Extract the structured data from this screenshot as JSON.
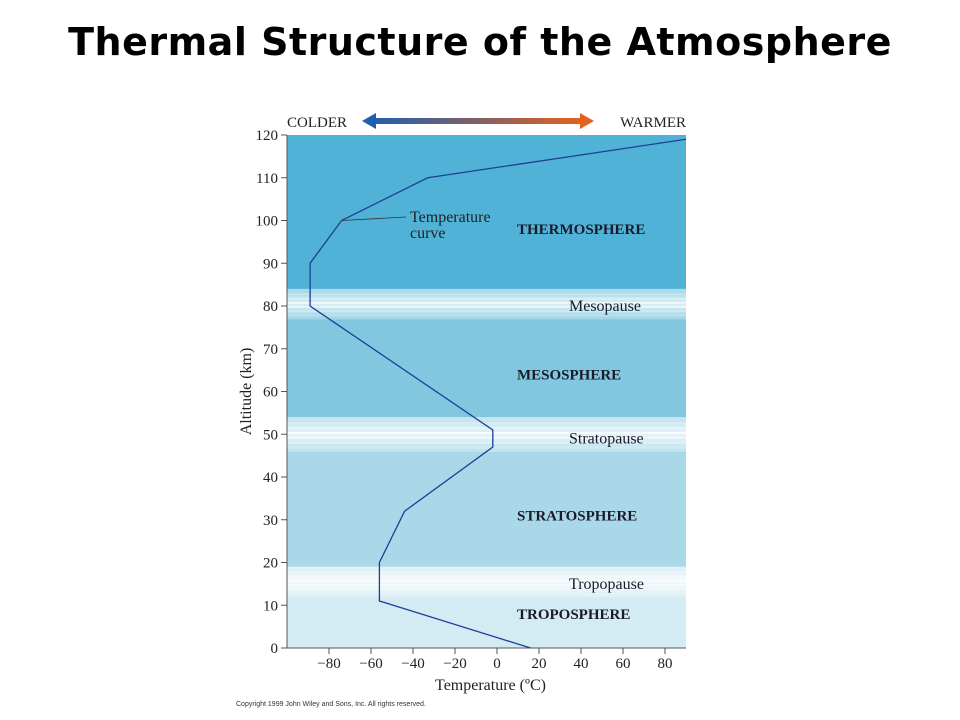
{
  "title": "Thermal Structure of the Atmosphere",
  "copyright": "Copyright 1999 John Wiley and Sons, Inc. All rights reserved.",
  "colors": {
    "thermosphere": "#4fb2d6",
    "mesosphere": "#80c7df",
    "stratosphere": "#a9d9e9",
    "troposphere": "#d3ebf3",
    "pause_band": "#ffffff",
    "curve": "#1f3f96",
    "arrow_cold": "#1f5fb0",
    "arrow_warm": "#e3621e"
  },
  "chart_data": {
    "type": "line",
    "xlabel": "Temperature (ºC)",
    "ylabel": "Altitude (km)",
    "xlim": [
      -100,
      90
    ],
    "ylim": [
      0,
      120
    ],
    "xticks": [
      -80,
      -60,
      -40,
      -20,
      0,
      20,
      40,
      60,
      80
    ],
    "xtick_labels": [
      "−80",
      "−60",
      "−40",
      "−20",
      "0",
      "20",
      "40",
      "60",
      "80"
    ],
    "yticks": [
      0,
      10,
      20,
      30,
      40,
      50,
      60,
      70,
      80,
      90,
      100,
      110,
      120
    ],
    "grid": false,
    "scale_arrow": {
      "left_label": "COLDER",
      "right_label": "WARMER"
    },
    "series": [
      {
        "x": [
          16,
          -56,
          -56,
          -44,
          -2,
          -2,
          -89,
          -89,
          -74,
          -33,
          90
        ],
        "y": [
          0,
          11,
          20,
          32,
          47,
          51,
          80,
          90,
          100,
          110,
          119
        ]
      }
    ],
    "curve_annotation": {
      "lines": [
        "Temperature",
        "curve"
      ],
      "anchor": {
        "x": -74,
        "y": 100
      }
    },
    "layers": [
      {
        "name": "TROPOSPHERE",
        "bottom": 0,
        "top": 12,
        "label_y": 8,
        "fill_key": "troposphere",
        "kind": "layer"
      },
      {
        "name": "Tropopause",
        "bottom": 12,
        "top": 19,
        "label_y": 15,
        "fill_key": "troposphere",
        "kind": "pause"
      },
      {
        "name": "STRATOSPHERE",
        "bottom": 19,
        "top": 46,
        "label_y": 31,
        "fill_key": "stratosphere",
        "kind": "layer"
      },
      {
        "name": "Stratopause",
        "bottom": 46,
        "top": 54,
        "label_y": 49,
        "fill_key": "stratosphere",
        "kind": "pause"
      },
      {
        "name": "MESOSPHERE",
        "bottom": 54,
        "top": 77,
        "label_y": 64,
        "fill_key": "mesosphere",
        "kind": "layer"
      },
      {
        "name": "Mesopause",
        "bottom": 77,
        "top": 84,
        "label_y": 80,
        "fill_key": "mesosphere",
        "kind": "pause"
      },
      {
        "name": "THERMOSPHERE",
        "bottom": 84,
        "top": 120,
        "label_y": 98,
        "fill_key": "thermosphere",
        "kind": "layer"
      }
    ]
  }
}
